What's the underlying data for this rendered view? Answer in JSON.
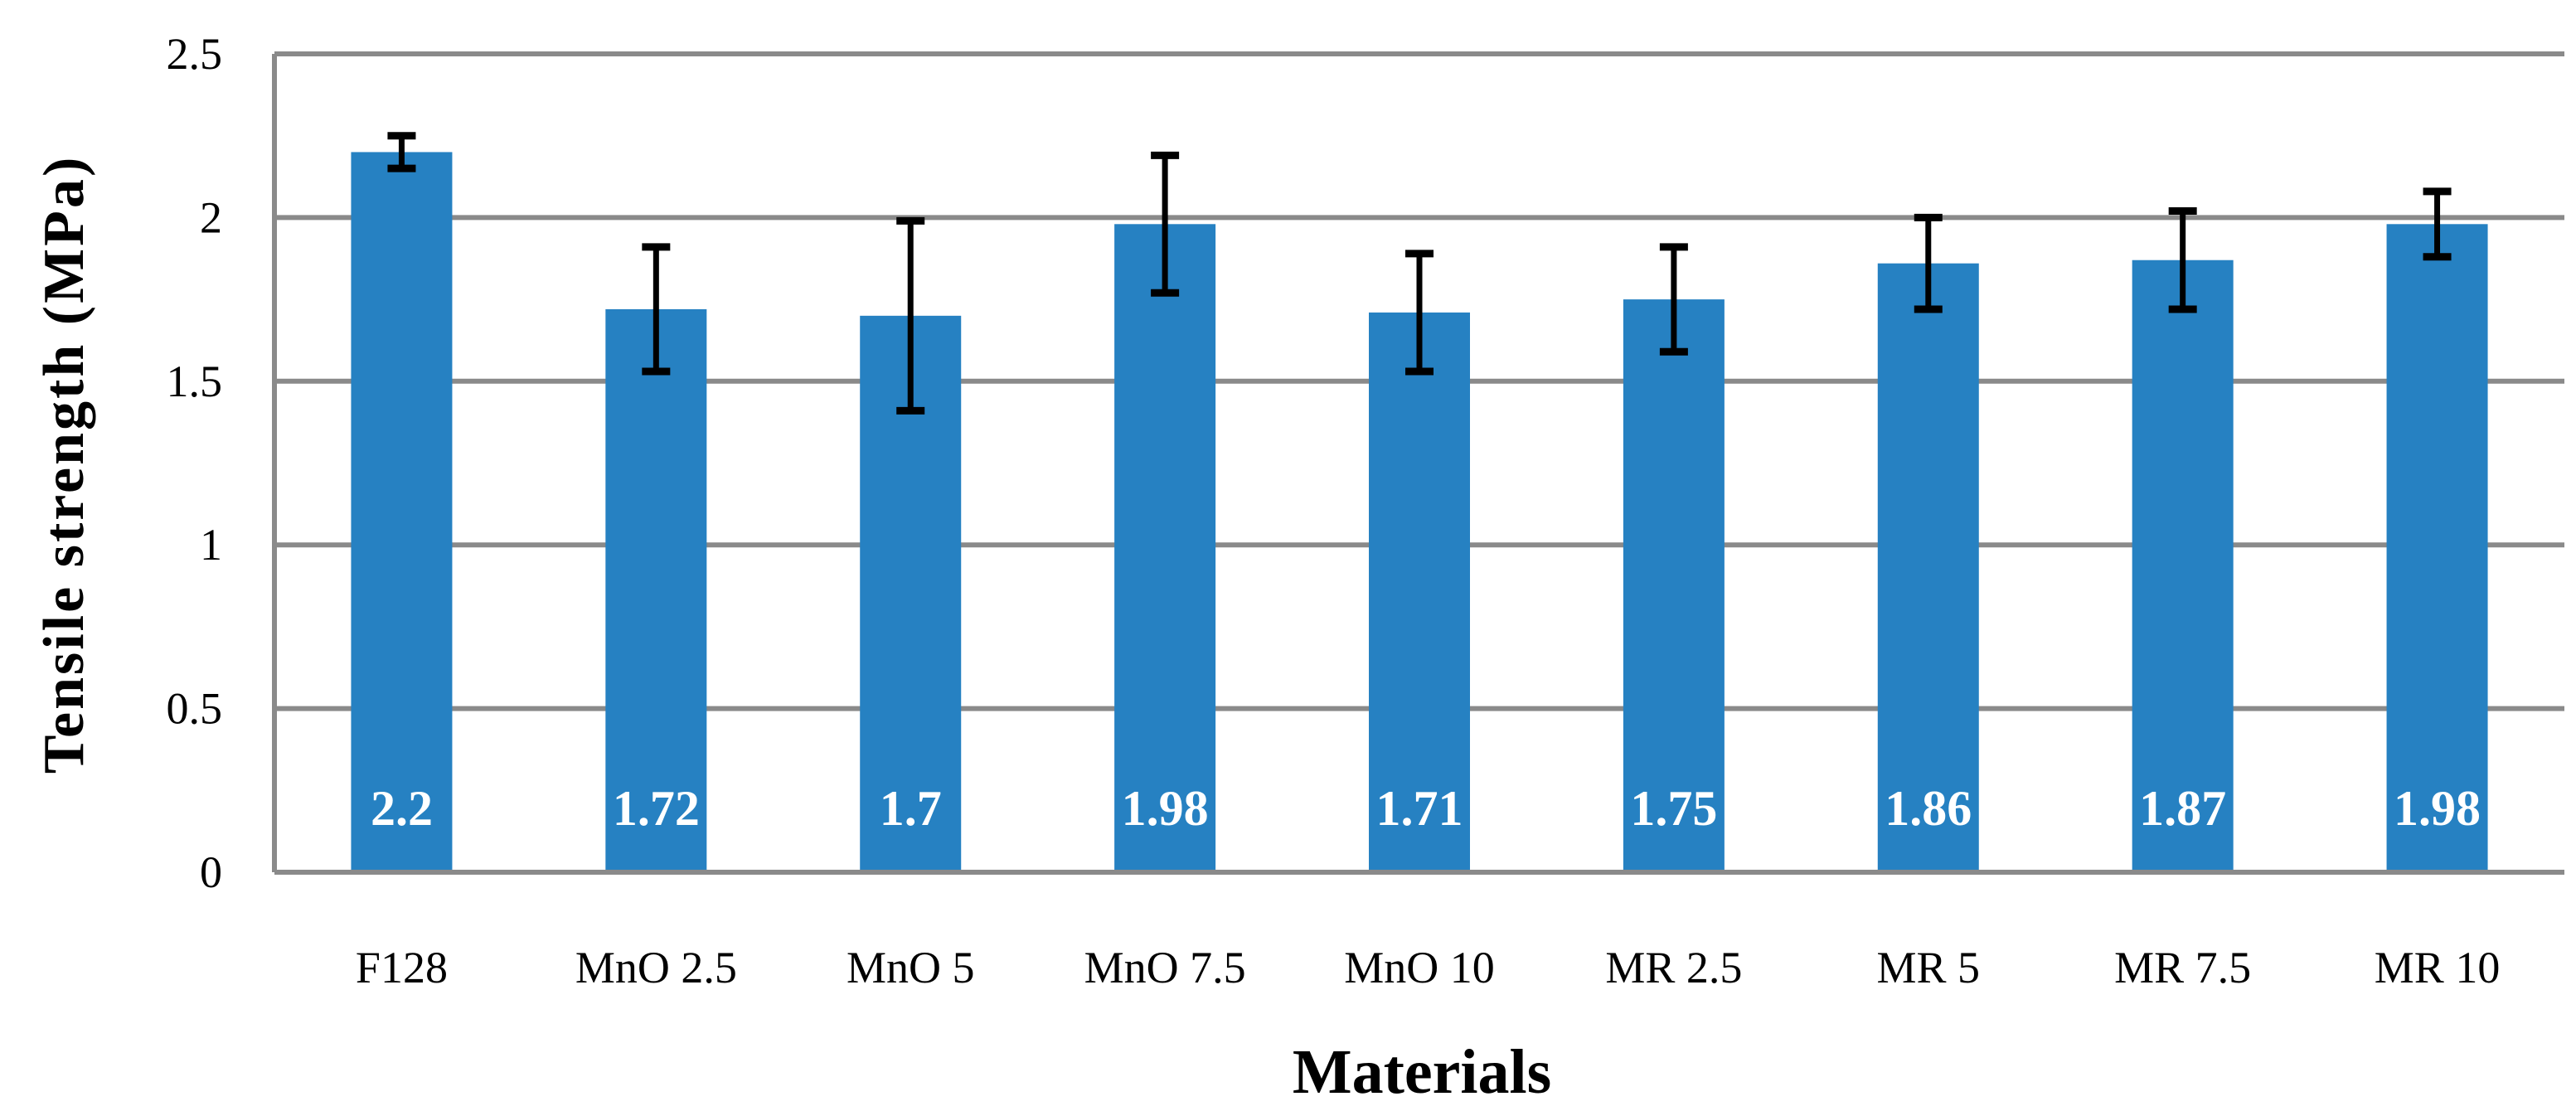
{
  "chart_data": {
    "type": "bar",
    "title": "",
    "xlabel": "Materials",
    "ylabel": "Tensile strength (MPa)",
    "ylim": [
      0,
      2.5
    ],
    "yticks": [
      0,
      0.5,
      1,
      1.5,
      2,
      2.5
    ],
    "ytick_labels": [
      "0",
      "0.5",
      "1",
      "1.5",
      "2",
      "2.5"
    ],
    "grid": true,
    "legend": null,
    "categories": [
      "F128",
      "MnO 2.5",
      "MnO 5",
      "MnO 7.5",
      "MnO 10",
      "MR 2.5",
      "MR 5",
      "MR 7.5",
      "MR 10"
    ],
    "values": [
      2.2,
      1.72,
      1.7,
      1.98,
      1.71,
      1.75,
      1.86,
      1.87,
      1.98
    ],
    "data_labels": [
      "2.2",
      "1.72",
      "1.7",
      "1.98",
      "1.71",
      "1.75",
      "1.86",
      "1.87",
      "1.98"
    ],
    "error_bars": [
      0.05,
      0.19,
      0.29,
      0.21,
      0.18,
      0.16,
      0.14,
      0.15,
      0.1
    ],
    "colors": {
      "bar": "#2681c2",
      "grid": "#8a8a8a",
      "error_bar": "#000000",
      "data_label": "#ffffff"
    }
  }
}
